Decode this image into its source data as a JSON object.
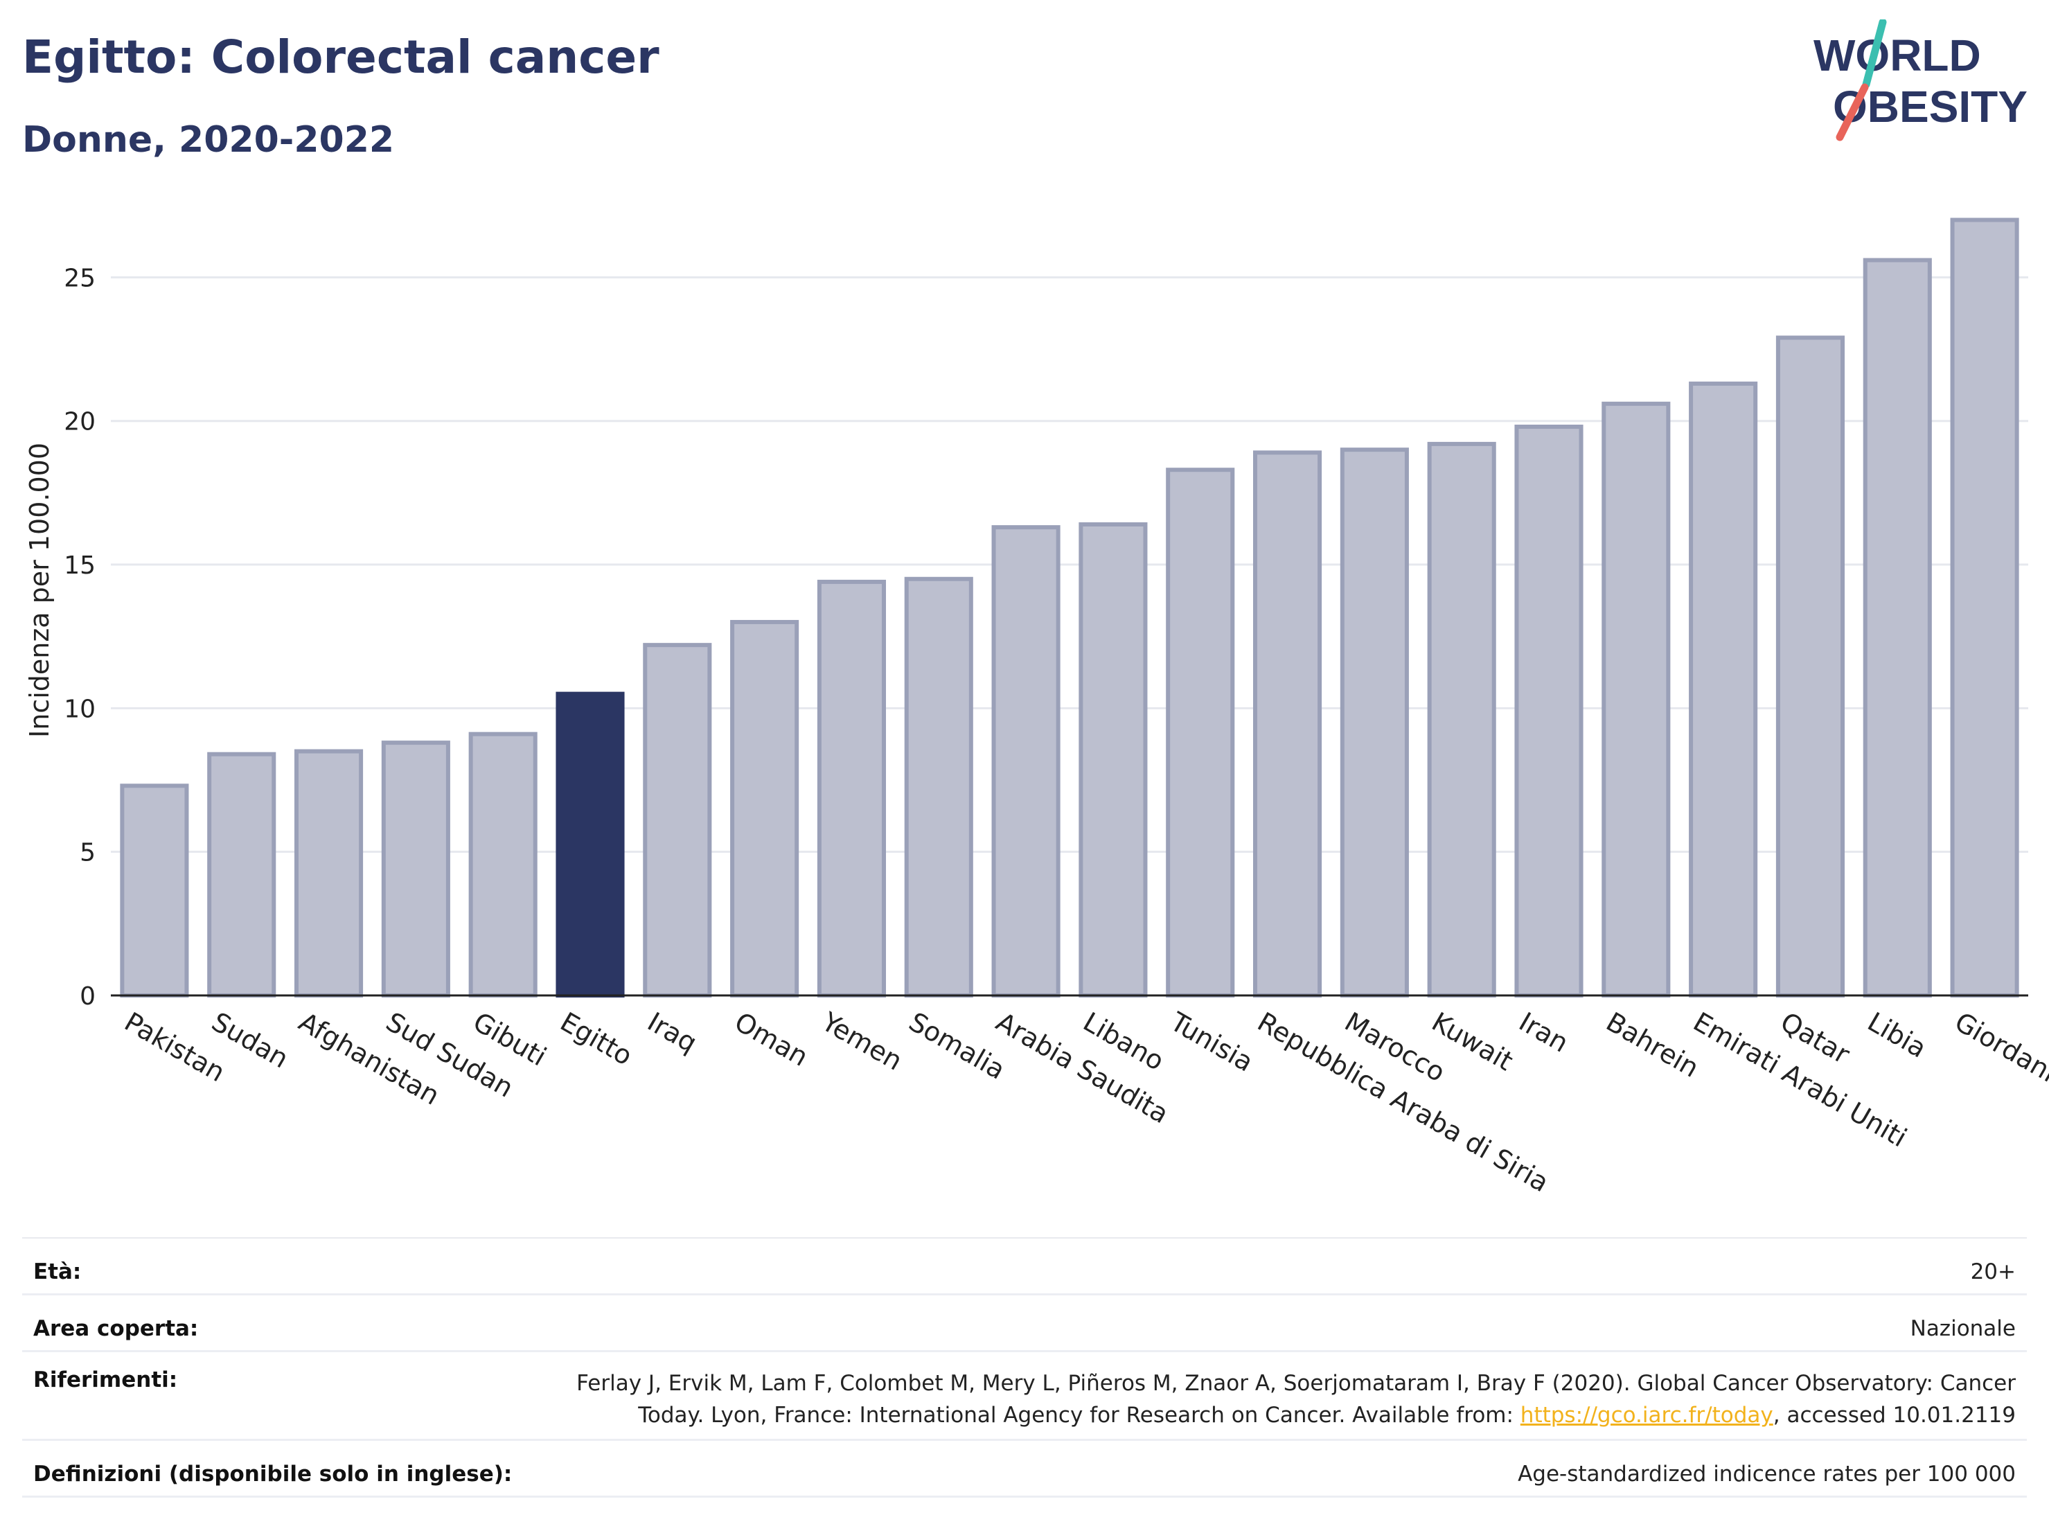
{
  "header": {
    "title": "Egitto: Colorectal cancer",
    "subtitle": "Donne, 2020-2022"
  },
  "logo": {
    "line1": "WORLD",
    "line2": "OBESITY",
    "colors": {
      "text": "#2b3663",
      "slash_top": "#3bbfb0",
      "slash_bottom": "#e8645a"
    }
  },
  "colors": {
    "bar": "#bcbfcf",
    "bar_stroke": "#9aa0b8",
    "highlight": "#2b3663",
    "grid": "#e6e8ee",
    "axis": "#222222"
  },
  "chart_data": {
    "type": "bar",
    "ylabel": "Incidenza per 100.000",
    "ylim": [
      0,
      28
    ],
    "yticks": [
      0,
      5,
      10,
      15,
      20,
      25
    ],
    "grid": true,
    "highlight": "Egitto",
    "categories": [
      "Pakistan",
      "Sudan",
      "Afghanistan",
      "Sud Sudan",
      "Gibuti",
      "Egitto",
      "Iraq",
      "Oman",
      "Yemen",
      "Somalia",
      "Arabia Saudita",
      "Libano",
      "Tunisia",
      "Repubblica Araba di Siria",
      "Marocco",
      "Kuwait",
      "Iran",
      "Bahrein",
      "Emirati Arabi Uniti",
      "Qatar",
      "Libia",
      "Giordania"
    ],
    "values": [
      7.3,
      8.4,
      8.5,
      8.8,
      9.1,
      10.5,
      12.2,
      13.0,
      14.4,
      14.5,
      16.3,
      16.4,
      18.3,
      18.9,
      19.0,
      19.2,
      19.8,
      20.6,
      21.3,
      22.9,
      25.6,
      27.0
    ]
  },
  "info": {
    "age": {
      "label": "Età:",
      "value": "20+"
    },
    "area": {
      "label": "Area coperta:",
      "value": "Nazionale"
    },
    "refs": {
      "label": "Riferimenti:",
      "line1": "Ferlay J, Ervik M, Lam F, Colombet M, Mery L, Piñeros M, Znaor A, Soerjomataram I, Bray F (2020). Global Cancer Observatory: Cancer",
      "line2_pre": "Today. Lyon, France: International Agency for Research on Cancer. Available from: ",
      "link": "https://gco.iarc.fr/today",
      "line2_post": ", accessed 10.01.2119"
    },
    "defs": {
      "label": "Definizioni (disponibile solo in inglese):",
      "value": "Age-standardized indicence rates per 100 000"
    }
  }
}
